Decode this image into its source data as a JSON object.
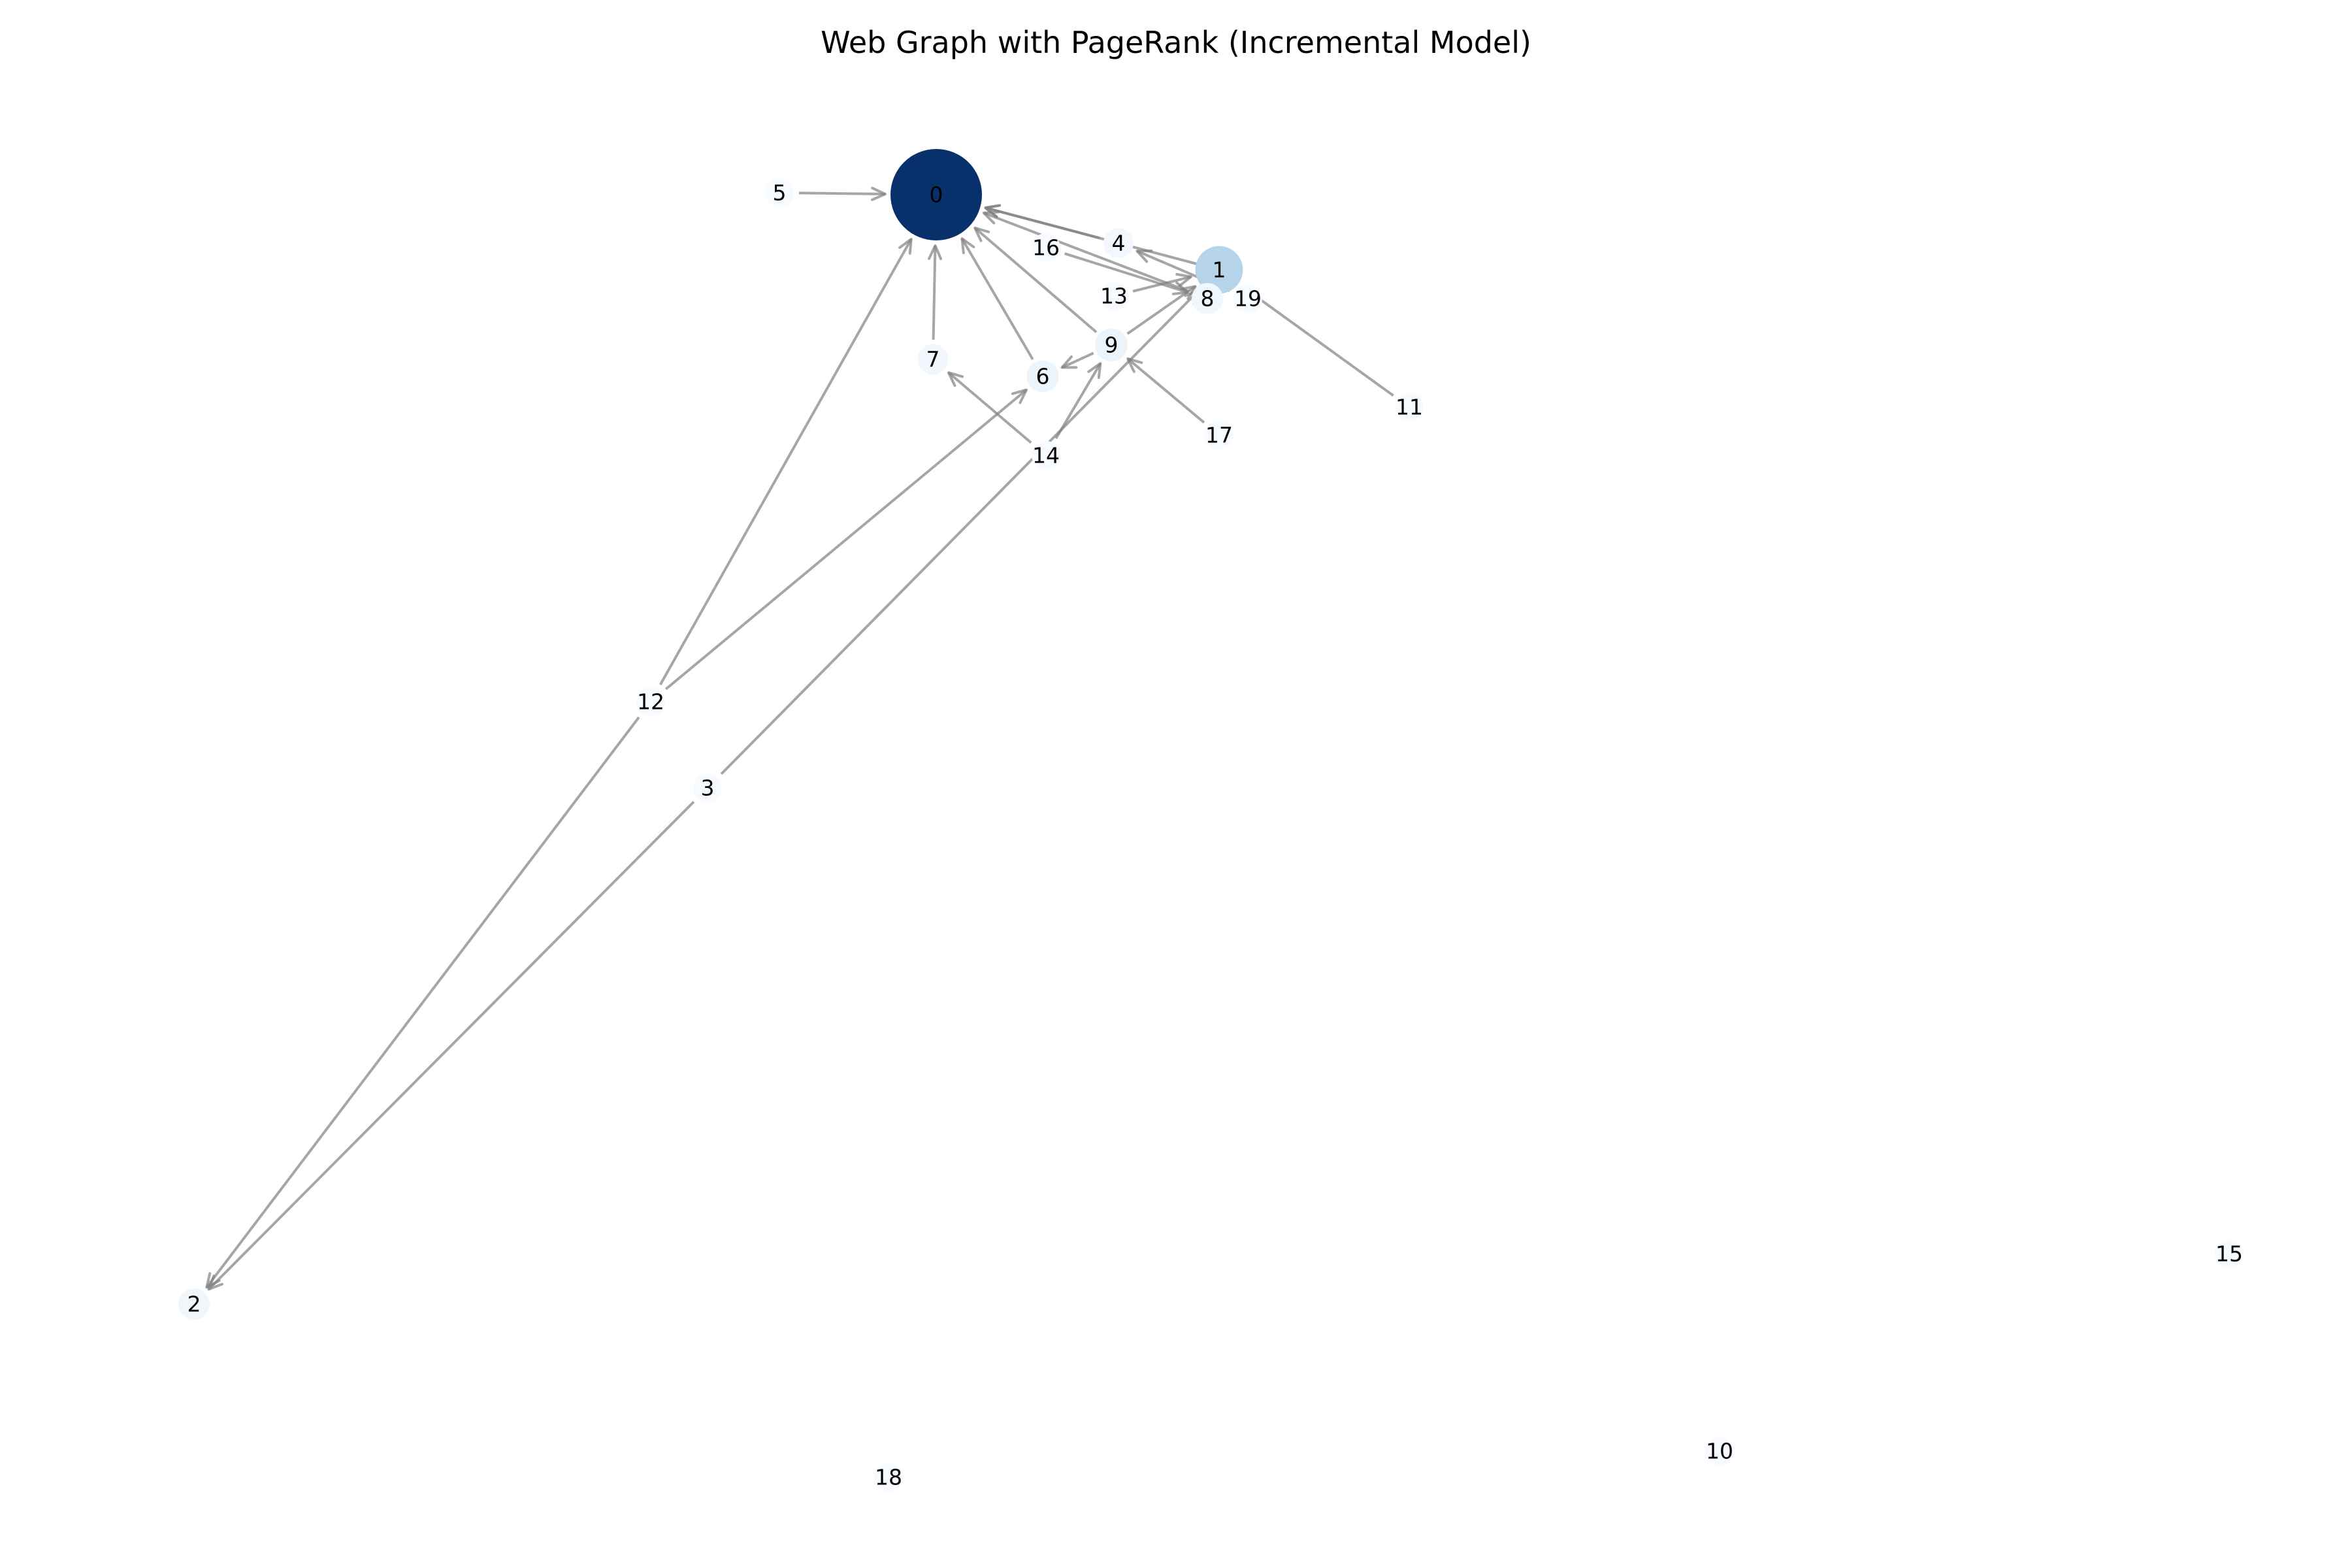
{
  "title": "Web Graph with PageRank (Incremental Model)",
  "colors": {
    "edge": "#808080",
    "low_rank": "#f7fbff",
    "mid_rank": "#b0d2e8",
    "high_rank": "#08306b",
    "background": "#ffffff"
  },
  "graph": {
    "type": "directed-graph",
    "colormap": "Blues",
    "nodes": [
      {
        "id": "0",
        "label": "0",
        "rank": 1.0
      },
      {
        "id": "1",
        "label": "1",
        "rank": 0.3
      },
      {
        "id": "2",
        "label": "2",
        "rank": 0.04
      },
      {
        "id": "3",
        "label": "3",
        "rank": 0
      },
      {
        "id": "4",
        "label": "4",
        "rank": 0.02
      },
      {
        "id": "5",
        "label": "5",
        "rank": 0
      },
      {
        "id": "6",
        "label": "6",
        "rank": 0.05
      },
      {
        "id": "7",
        "label": "7",
        "rank": 0.03
      },
      {
        "id": "8",
        "label": "8",
        "rank": 0.04
      },
      {
        "id": "9",
        "label": "9",
        "rank": 0.06
      },
      {
        "id": "10",
        "label": "10",
        "rank": 0
      },
      {
        "id": "11",
        "label": "11",
        "rank": 0
      },
      {
        "id": "12",
        "label": "12",
        "rank": 0
      },
      {
        "id": "13",
        "label": "13",
        "rank": 0
      },
      {
        "id": "14",
        "label": "14",
        "rank": 0
      },
      {
        "id": "15",
        "label": "15",
        "rank": 0
      },
      {
        "id": "16",
        "label": "16",
        "rank": 0
      },
      {
        "id": "17",
        "label": "17",
        "rank": 0
      },
      {
        "id": "18",
        "label": "18",
        "rank": 0
      },
      {
        "id": "19",
        "label": "19",
        "rank": 0
      }
    ],
    "edges": [
      {
        "source": "5",
        "target": "0"
      },
      {
        "source": "4",
        "target": "0"
      },
      {
        "source": "1",
        "target": "0"
      },
      {
        "source": "8",
        "target": "0"
      },
      {
        "source": "19",
        "target": "4"
      },
      {
        "source": "16",
        "target": "8"
      },
      {
        "source": "13",
        "target": "1"
      },
      {
        "source": "11",
        "target": "1"
      },
      {
        "source": "9",
        "target": "0"
      },
      {
        "source": "9",
        "target": "1"
      },
      {
        "source": "9",
        "target": "6"
      },
      {
        "source": "6",
        "target": "0"
      },
      {
        "source": "7",
        "target": "0"
      },
      {
        "source": "14",
        "target": "7"
      },
      {
        "source": "14",
        "target": "9"
      },
      {
        "source": "17",
        "target": "9"
      },
      {
        "source": "12",
        "target": "0"
      },
      {
        "source": "12",
        "target": "6"
      },
      {
        "source": "12",
        "target": "2"
      },
      {
        "source": "3",
        "target": "1"
      },
      {
        "source": "3",
        "target": "2"
      }
    ]
  }
}
